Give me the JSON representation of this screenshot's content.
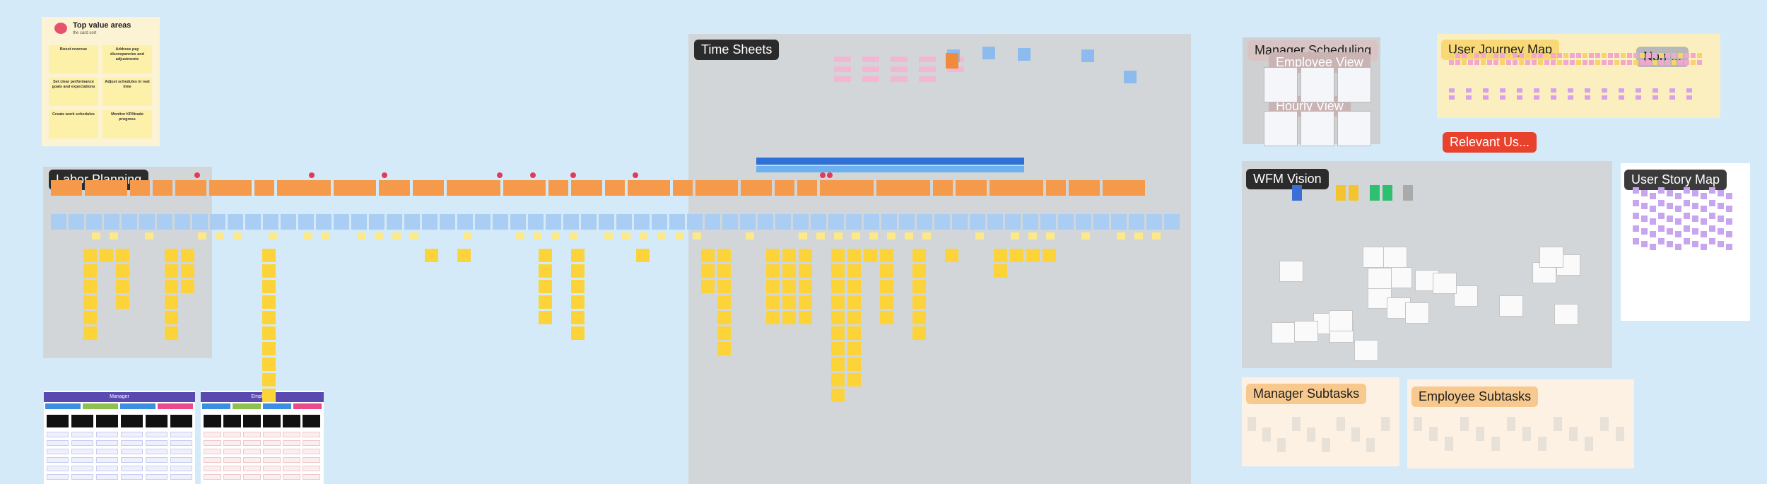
{
  "top_value_areas": {
    "title": "Top value areas",
    "subtitle": "the card sort",
    "cards": [
      "Boost revenue",
      "Address pay discrepancies and adjustments",
      "Set clear performance goals and expectations",
      "Adjust schedules in real time",
      "Create work schedules",
      "Monitor KPI/trade progress"
    ]
  },
  "sections": {
    "labor_planning": "Labor Planning",
    "time_sheets": "Time Sheets",
    "manager_scheduling": "Manager Scheduling",
    "employee_view": "Employee View",
    "hourly_view": "Hourly View",
    "user_journey_map": "User Journey Map",
    "non": "Non-...",
    "relevant": "Relevant Us...",
    "wfm_vision": "WFM Vision",
    "user_story_map": "User Story Map",
    "manager_subtasks": "Manager Subtasks",
    "employee_subtasks": "Employee Subtasks"
  },
  "tables": {
    "manager": "Manager",
    "employee": "Employee"
  }
}
